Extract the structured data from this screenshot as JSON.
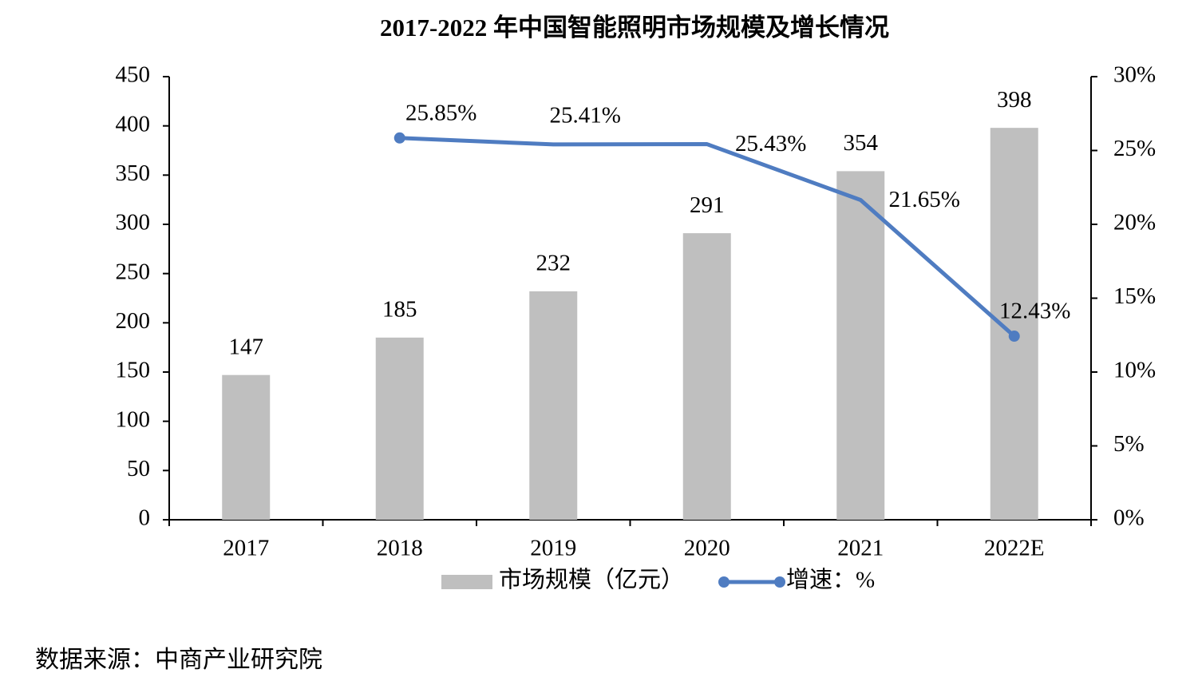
{
  "chart_data": {
    "type": "bar",
    "title": "2017-2022 年中国智能照明市场规模及增长情况",
    "categories": [
      "2017",
      "2018",
      "2019",
      "2020",
      "2021",
      "2022E"
    ],
    "series": [
      {
        "name": "市场规模（亿元）",
        "type": "bar",
        "color": "#bfbfbf",
        "values": [
          147,
          185,
          232,
          291,
          354,
          398
        ]
      },
      {
        "name": "增速：%",
        "type": "line",
        "axis": "y2",
        "color": "#4f7cc1",
        "values": [
          null,
          25.85,
          25.41,
          25.43,
          21.65,
          12.43
        ],
        "value_labels": [
          null,
          "25.85%",
          "25.41%",
          "25.43%",
          "21.65%",
          "12.43%"
        ]
      }
    ],
    "ylim": [
      0,
      450
    ],
    "yticks": [
      0,
      50,
      100,
      150,
      200,
      250,
      300,
      350,
      400,
      450
    ],
    "y2lim": [
      0,
      30
    ],
    "y2ticks": [
      {
        "value": 0,
        "label": "0%"
      },
      {
        "value": 5,
        "label": "5%"
      },
      {
        "value": 10,
        "label": "10%"
      },
      {
        "value": 15,
        "label": "15%"
      },
      {
        "value": 20,
        "label": "20%"
      },
      {
        "value": 25,
        "label": "25%"
      },
      {
        "value": 30,
        "label": "30%"
      }
    ],
    "legend": "bottom",
    "source": "数据来源：中商产业研究院"
  }
}
